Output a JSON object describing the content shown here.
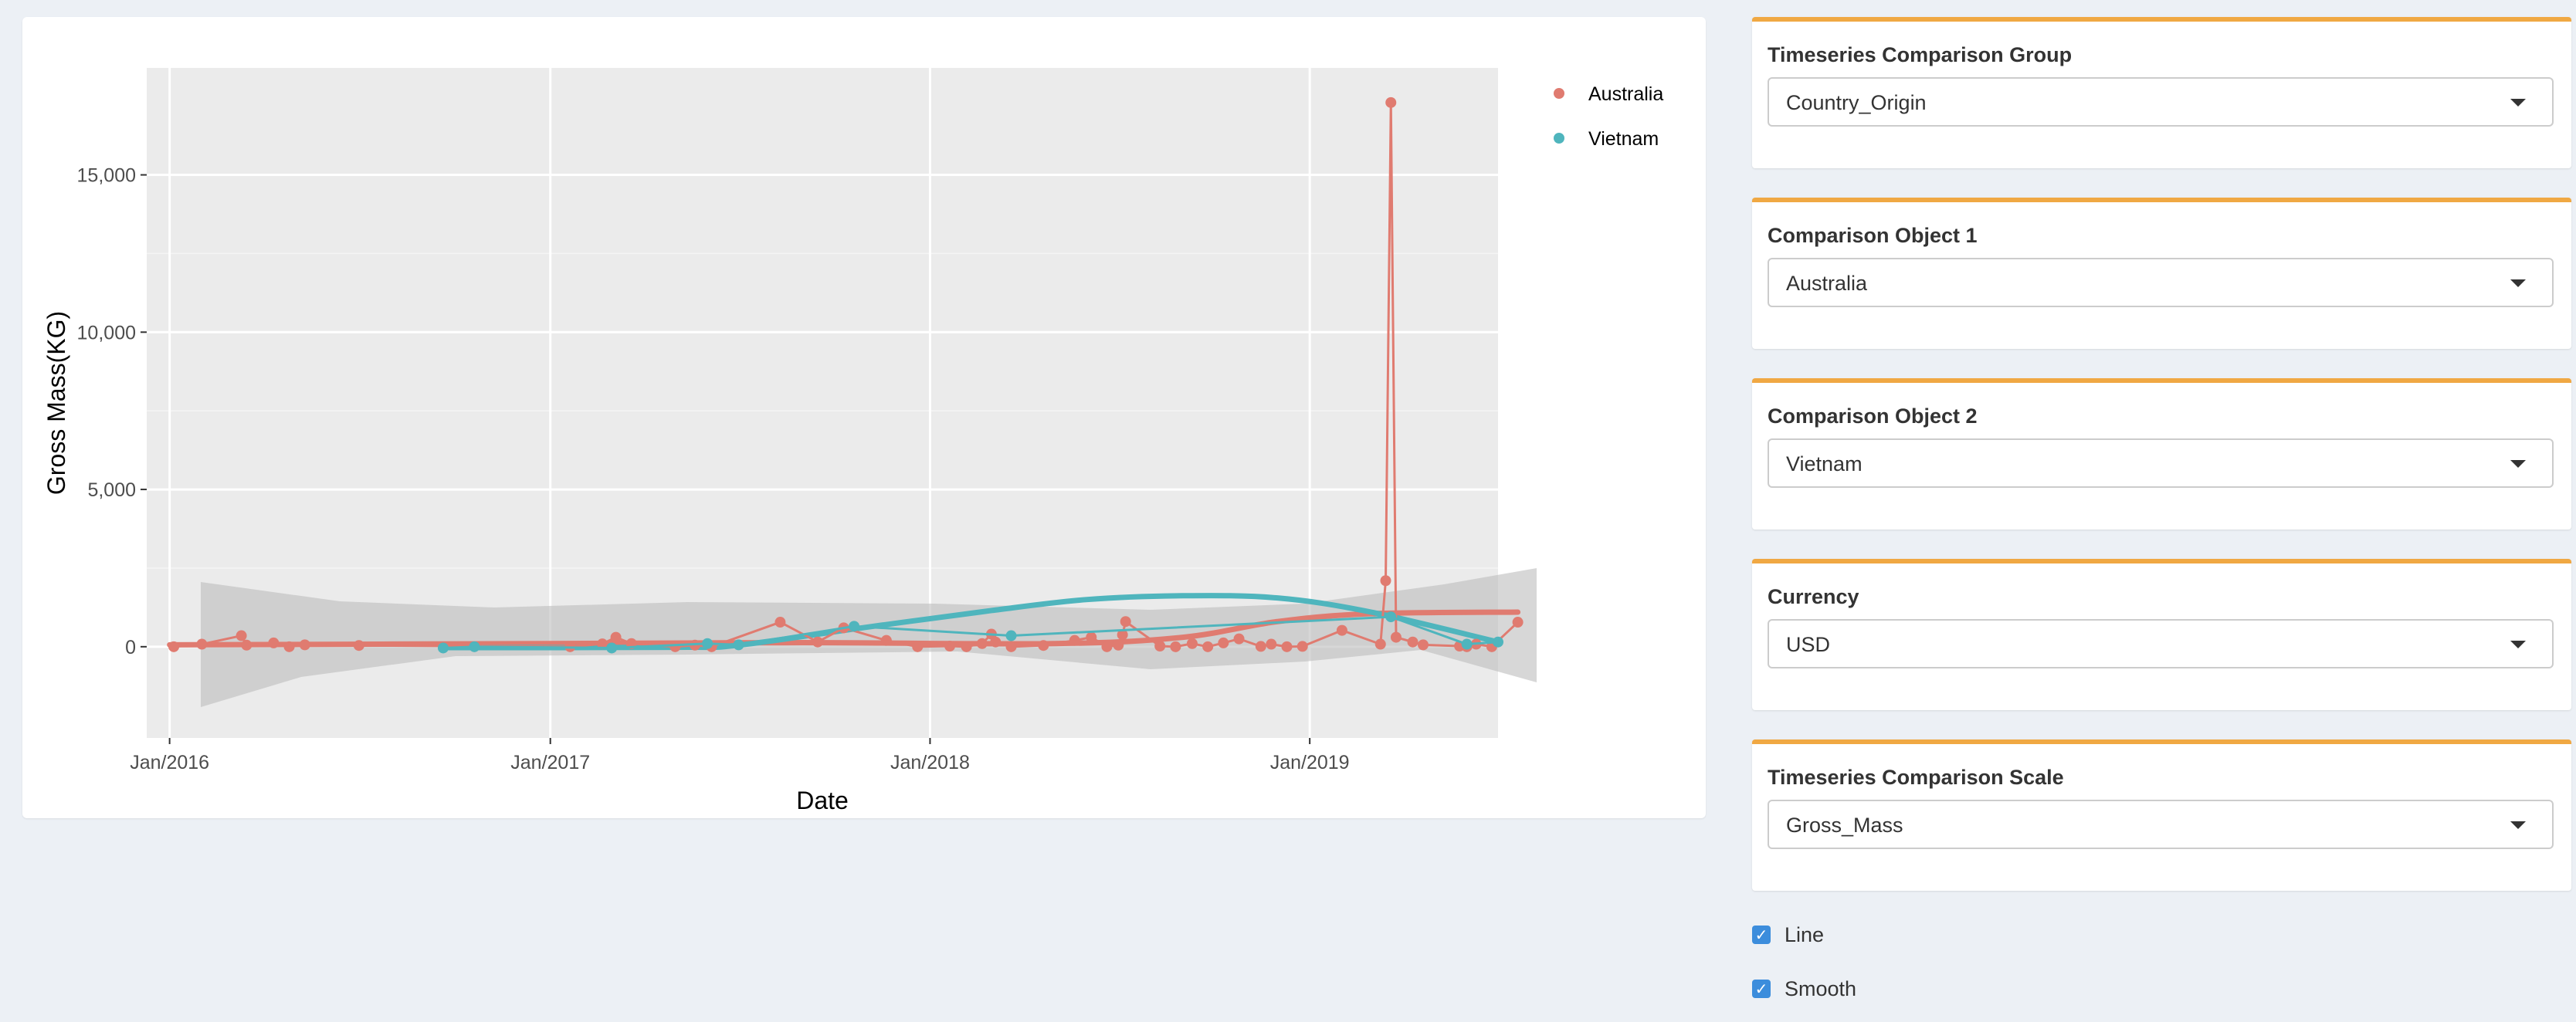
{
  "controls": [
    {
      "label": "Timeseries Comparison Group",
      "value": "Country_Origin"
    },
    {
      "label": "Comparison Object 1",
      "value": "Australia"
    },
    {
      "label": "Comparison Object 2",
      "value": "Vietnam"
    },
    {
      "label": "Currency",
      "value": "USD"
    },
    {
      "label": "Timeseries Comparison Scale",
      "value": "Gross_Mass"
    }
  ],
  "options": {
    "line_label": "Line",
    "line_checked": true,
    "smooth_label": "Smooth",
    "smooth_checked": true
  },
  "colors": {
    "australia": "#e07b70",
    "vietnam": "#4fb5bd",
    "accent": "#f0a843",
    "panel_bg": "#ebebeb",
    "band": "#bdbdbd"
  },
  "chart_data": {
    "type": "line",
    "xlabel": "Date",
    "ylabel": "Gross Mass(KG)",
    "x_ticks": [
      {
        "date": "2016-01-01",
        "label": "Jan/2016"
      },
      {
        "date": "2017-01-01",
        "label": "Jan/2017"
      },
      {
        "date": "2018-01-01",
        "label": "Jan/2018"
      },
      {
        "date": "2019-01-01",
        "label": "Jan/2019"
      }
    ],
    "y_ticks": [
      {
        "value": 0,
        "label": "0"
      },
      {
        "value": 5000,
        "label": "5,000"
      },
      {
        "value": 10000,
        "label": "10,000"
      },
      {
        "value": 15000,
        "label": "15,000"
      }
    ],
    "xlim": [
      "2015-12-10",
      "2019-07-01"
    ],
    "ylim": [
      -2900,
      18400
    ],
    "legend_position": "right",
    "grid": true,
    "series": [
      {
        "name": "Australia",
        "color": "#e07b70",
        "points": [
          [
            "2016-01-05",
            0
          ],
          [
            "2016-02-01",
            80
          ],
          [
            "2016-03-10",
            350
          ],
          [
            "2016-03-15",
            50
          ],
          [
            "2016-04-10",
            120
          ],
          [
            "2016-04-25",
            0
          ],
          [
            "2016-05-10",
            60
          ],
          [
            "2016-07-01",
            40
          ],
          [
            "2017-01-20",
            0
          ],
          [
            "2017-02-20",
            90
          ],
          [
            "2017-03-05",
            300
          ],
          [
            "2017-03-20",
            100
          ],
          [
            "2017-05-01",
            0
          ],
          [
            "2017-05-20",
            50
          ],
          [
            "2017-06-05",
            0
          ],
          [
            "2017-08-10",
            780
          ],
          [
            "2017-09-15",
            150
          ],
          [
            "2017-10-10",
            600
          ],
          [
            "2017-11-20",
            200
          ],
          [
            "2017-12-20",
            0
          ],
          [
            "2018-01-20",
            20
          ],
          [
            "2018-02-05",
            0
          ],
          [
            "2018-02-20",
            100
          ],
          [
            "2018-03-01",
            400
          ],
          [
            "2018-03-05",
            150
          ],
          [
            "2018-03-20",
            0
          ],
          [
            "2018-04-20",
            40
          ],
          [
            "2018-05-20",
            200
          ],
          [
            "2018-06-05",
            300
          ],
          [
            "2018-06-20",
            0
          ],
          [
            "2018-07-01",
            50
          ],
          [
            "2018-07-05",
            380
          ],
          [
            "2018-07-08",
            800
          ],
          [
            "2018-08-10",
            20
          ],
          [
            "2018-08-25",
            0
          ],
          [
            "2018-09-10",
            100
          ],
          [
            "2018-09-25",
            0
          ],
          [
            "2018-10-10",
            120
          ],
          [
            "2018-10-25",
            250
          ],
          [
            "2018-11-15",
            10
          ],
          [
            "2018-11-25",
            80
          ],
          [
            "2018-12-10",
            0
          ],
          [
            "2018-12-25",
            10
          ],
          [
            "2019-02-01",
            520
          ],
          [
            "2019-03-10",
            80
          ],
          [
            "2019-03-15",
            2100
          ],
          [
            "2019-03-20",
            17300
          ],
          [
            "2019-03-25",
            300
          ],
          [
            "2019-04-10",
            150
          ],
          [
            "2019-04-20",
            60
          ],
          [
            "2019-05-25",
            20
          ],
          [
            "2019-06-01",
            0
          ],
          [
            "2019-06-10",
            80
          ],
          [
            "2019-06-25",
            0
          ],
          [
            "2019-07-20",
            780
          ]
        ],
        "smooth": [
          [
            "2016-01-01",
            60
          ],
          [
            "2017-01-01",
            100
          ],
          [
            "2017-09-01",
            130
          ],
          [
            "2018-05-01",
            100
          ],
          [
            "2018-09-01",
            300
          ],
          [
            "2018-12-01",
            800
          ],
          [
            "2019-03-01",
            1050
          ],
          [
            "2019-07-20",
            1100
          ]
        ]
      },
      {
        "name": "Vietnam",
        "color": "#4fb5bd",
        "points": [
          [
            "2016-09-20",
            -40
          ],
          [
            "2016-10-20",
            0
          ],
          [
            "2017-03-01",
            -40
          ],
          [
            "2017-06-01",
            100
          ],
          [
            "2017-07-01",
            60
          ],
          [
            "2017-10-20",
            650
          ],
          [
            "2018-03-20",
            350
          ],
          [
            "2019-03-20",
            950
          ],
          [
            "2019-06-01",
            80
          ],
          [
            "2019-07-01",
            150
          ]
        ],
        "smooth": [
          [
            "2016-09-20",
            -30
          ],
          [
            "2017-05-01",
            -20
          ],
          [
            "2017-07-01",
            50
          ],
          [
            "2017-11-01",
            620
          ],
          [
            "2018-03-01",
            1150
          ],
          [
            "2018-06-01",
            1500
          ],
          [
            "2018-09-01",
            1620
          ],
          [
            "2018-12-01",
            1550
          ],
          [
            "2019-03-01",
            1100
          ],
          [
            "2019-07-01",
            150
          ]
        ]
      }
    ]
  }
}
